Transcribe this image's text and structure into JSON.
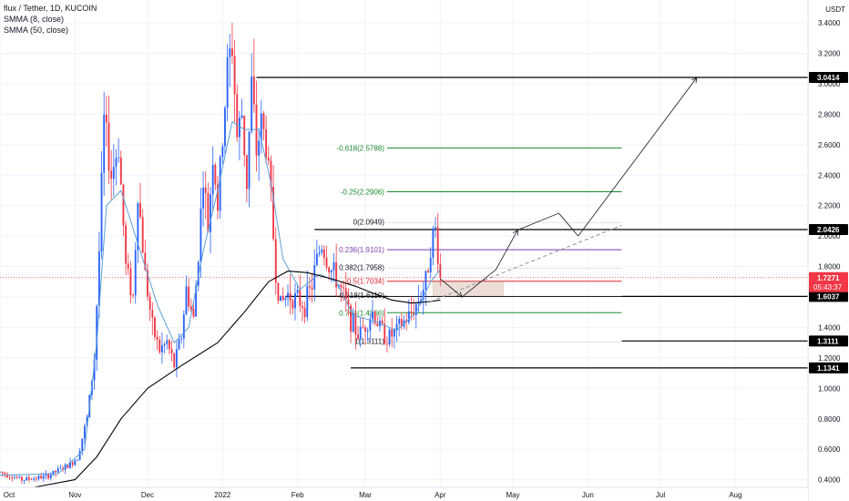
{
  "legend": {
    "symbol_line": "flux / Tether, 1D, KUCOIN",
    "ma1": "SMMA (8, close)",
    "ma2": "SMMA (50, close)"
  },
  "colors": {
    "up": "#2962ff",
    "down": "#f23645",
    "ma_fast": "#5a9fd6",
    "ma_slow": "#000000",
    "fib_green": "#1b8a2e",
    "fib_purple": "#7b3fb0",
    "fib_red": "#d9262c",
    "current_price": "#f23645"
  },
  "chart_data": {
    "type": "candlestick",
    "title": "flux / Tether, 1D, KUCOIN",
    "yaxis": {
      "unit": "USDT",
      "ylim": [
        0.35,
        3.55
      ],
      "ticks": [
        3.4,
        3.2,
        3.0,
        2.8,
        2.6,
        2.4,
        2.2,
        2.0,
        1.8,
        1.6,
        1.4,
        1.2,
        1.0,
        0.8,
        0.6,
        0.4
      ],
      "tick_labels": [
        "3.4000",
        "3.2000",
        "3.0000",
        "2.8000",
        "2.6000",
        "2.4000",
        "2.2000",
        "2.0000",
        "1.8000",
        "1.6000",
        "1.4000",
        "1.2000",
        "1.0000",
        "0.8000",
        "0.6000",
        "0.4000"
      ]
    },
    "xaxis": {
      "start": "2021-10-01",
      "end": "2022-08-31",
      "labels": [
        {
          "date": "2021-10-01",
          "label": "Oct"
        },
        {
          "date": "2021-11-01",
          "label": "Nov"
        },
        {
          "date": "2021-12-01",
          "label": "Dec"
        },
        {
          "date": "2022-01-01",
          "label": "2022"
        },
        {
          "date": "2022-02-01",
          "label": "Feb"
        },
        {
          "date": "2022-03-01",
          "label": "Mar"
        },
        {
          "date": "2022-04-01",
          "label": "Apr"
        },
        {
          "date": "2022-05-01",
          "label": "May"
        },
        {
          "date": "2022-06-01",
          "label": "Jun"
        },
        {
          "date": "2022-07-01",
          "label": "Jul"
        },
        {
          "date": "2022-08-01",
          "label": "Aug"
        }
      ]
    },
    "price_path": [
      [
        "2021-10-01",
        0.45
      ],
      [
        "2021-10-10",
        0.4
      ],
      [
        "2021-10-20",
        0.42
      ],
      [
        "2021-10-30",
        0.5
      ],
      [
        "2021-11-02",
        0.55
      ],
      [
        "2021-11-06",
        0.8
      ],
      [
        "2021-11-09",
        1.2
      ],
      [
        "2021-11-11",
        1.9
      ],
      [
        "2021-11-13",
        2.75
      ],
      [
        "2021-11-16",
        2.4
      ],
      [
        "2021-11-19",
        2.6
      ],
      [
        "2021-11-22",
        1.8
      ],
      [
        "2021-11-25",
        1.6
      ],
      [
        "2021-11-27",
        2.3
      ],
      [
        "2021-11-30",
        1.75
      ],
      [
        "2021-12-03",
        1.4
      ],
      [
        "2021-12-06",
        1.25
      ],
      [
        "2021-12-09",
        1.3
      ],
      [
        "2021-12-12",
        1.15
      ],
      [
        "2021-12-15",
        1.35
      ],
      [
        "2021-12-17",
        1.65
      ],
      [
        "2021-12-20",
        1.45
      ],
      [
        "2021-12-22",
        1.9
      ],
      [
        "2021-12-24",
        2.4
      ],
      [
        "2021-12-26",
        2.05
      ],
      [
        "2021-12-28",
        2.55
      ],
      [
        "2021-12-30",
        2.2
      ],
      [
        "2022-01-01",
        2.65
      ],
      [
        "2022-01-03",
        3.1
      ],
      [
        "2022-01-05",
        3.25
      ],
      [
        "2022-01-07",
        2.65
      ],
      [
        "2022-01-09",
        2.8
      ],
      [
        "2022-01-11",
        2.35
      ],
      [
        "2022-01-13",
        3.0
      ],
      [
        "2022-01-15",
        2.55
      ],
      [
        "2022-01-17",
        2.75
      ],
      [
        "2022-01-19",
        2.6
      ],
      [
        "2022-01-21",
        2.25
      ],
      [
        "2022-01-23",
        1.75
      ],
      [
        "2022-01-25",
        1.55
      ],
      [
        "2022-01-28",
        1.62
      ],
      [
        "2022-02-01",
        1.58
      ],
      [
        "2022-02-04",
        1.55
      ],
      [
        "2022-02-07",
        1.68
      ],
      [
        "2022-02-09",
        1.85
      ],
      [
        "2022-02-11",
        1.95
      ],
      [
        "2022-02-14",
        1.8
      ],
      [
        "2022-02-17",
        1.72
      ],
      [
        "2022-02-20",
        1.6
      ],
      [
        "2022-02-23",
        1.45
      ],
      [
        "2022-02-26",
        1.35
      ],
      [
        "2022-03-01",
        1.42
      ],
      [
        "2022-03-04",
        1.5
      ],
      [
        "2022-03-07",
        1.4
      ],
      [
        "2022-03-10",
        1.33
      ],
      [
        "2022-03-13",
        1.36
      ],
      [
        "2022-03-16",
        1.42
      ],
      [
        "2022-03-19",
        1.47
      ],
      [
        "2022-03-22",
        1.55
      ],
      [
        "2022-03-24",
        1.62
      ],
      [
        "2022-03-26",
        1.7
      ],
      [
        "2022-03-28",
        1.95
      ],
      [
        "2022-03-30",
        2.04
      ],
      [
        "2022-04-01",
        1.72
      ]
    ],
    "candle_seed": 7,
    "current_price": {
      "value": 1.7271,
      "label": "1.7271",
      "countdown": "05:43:37"
    },
    "smma_fast": [
      [
        "2021-10-01",
        0.43
      ],
      [
        "2021-10-25",
        0.44
      ],
      [
        "2021-11-05",
        0.6
      ],
      [
        "2021-11-10",
        1.3
      ],
      [
        "2021-11-14",
        2.2
      ],
      [
        "2021-11-20",
        2.3
      ],
      [
        "2021-11-27",
        1.95
      ],
      [
        "2021-12-05",
        1.55
      ],
      [
        "2021-12-12",
        1.3
      ],
      [
        "2021-12-18",
        1.4
      ],
      [
        "2021-12-24",
        1.9
      ],
      [
        "2021-12-30",
        2.3
      ],
      [
        "2022-01-05",
        2.75
      ],
      [
        "2022-01-10",
        2.7
      ],
      [
        "2022-01-16",
        2.7
      ],
      [
        "2022-01-21",
        2.35
      ],
      [
        "2022-01-26",
        1.85
      ],
      [
        "2022-02-02",
        1.65
      ],
      [
        "2022-02-10",
        1.75
      ],
      [
        "2022-02-17",
        1.7
      ],
      [
        "2022-02-24",
        1.48
      ],
      [
        "2022-03-05",
        1.44
      ],
      [
        "2022-03-14",
        1.38
      ],
      [
        "2022-03-22",
        1.5
      ],
      [
        "2022-03-28",
        1.7
      ],
      [
        "2022-04-01",
        1.78
      ]
    ],
    "smma_slow": [
      [
        "2021-10-01",
        0.33
      ],
      [
        "2021-10-15",
        0.35
      ],
      [
        "2021-11-01",
        0.4
      ],
      [
        "2021-11-10",
        0.55
      ],
      [
        "2021-11-20",
        0.8
      ],
      [
        "2021-12-01",
        1.0
      ],
      [
        "2021-12-15",
        1.15
      ],
      [
        "2021-12-30",
        1.3
      ],
      [
        "2022-01-10",
        1.5
      ],
      [
        "2022-01-20",
        1.7
      ],
      [
        "2022-01-28",
        1.77
      ],
      [
        "2022-02-05",
        1.76
      ],
      [
        "2022-02-15",
        1.72
      ],
      [
        "2022-02-25",
        1.67
      ],
      [
        "2022-03-05",
        1.62
      ],
      [
        "2022-03-12",
        1.58
      ],
      [
        "2022-03-20",
        1.56
      ],
      [
        "2022-03-28",
        1.57
      ],
      [
        "2022-04-01",
        1.58
      ]
    ],
    "fib_levels": [
      {
        "label": "-0.618(2.5788)",
        "value": 2.5788,
        "color": "#1b8a2e"
      },
      {
        "label": "-0.25(2.2906)",
        "value": 2.2906,
        "color": "#1b8a2e"
      },
      {
        "label": "0(2.0949)",
        "value": 2.0949,
        "color": "#ffffff"
      },
      {
        "label": "0.236(1.9101)",
        "value": 1.9101,
        "color": "#7b3fb0"
      },
      {
        "label": "0.382(1.7958)",
        "value": 1.7958,
        "color": "#ffffff"
      },
      {
        "label": "0.5(1.7034)",
        "value": 1.7034,
        "color": "#d9262c"
      },
      {
        "label": "0.618(1.6110)",
        "value": 1.611,
        "color": "#ffffff"
      },
      {
        "label": "0.764(1.4966)",
        "value": 1.4966,
        "color": "#1b8a2e"
      },
      {
        "label": "1(1.3111)",
        "value": 1.3111,
        "color": "#ffffff"
      }
    ],
    "fib_range": [
      "2022-03-10",
      "2022-06-15"
    ],
    "horizontal_levels": [
      {
        "value": 3.0414,
        "label": "3.0414",
        "start": "2022-01-15"
      },
      {
        "value": 2.0426,
        "label": "2.0426",
        "start": "2022-02-08"
      },
      {
        "value": 1.6037,
        "label": "1.6037",
        "start": "2022-01-27"
      },
      {
        "value": 1.3111,
        "label": "1.3111",
        "start": "2022-03-10"
      },
      {
        "value": 1.1341,
        "label": "1.1341",
        "start": "2022-02-23"
      }
    ],
    "trendline_dashed": [
      [
        "2022-03-28",
        1.57
      ],
      [
        "2022-06-15",
        2.07
      ]
    ],
    "projection_path": [
      [
        "2022-04-01",
        1.72
      ],
      [
        "2022-04-10",
        1.6
      ],
      [
        "2022-04-24",
        1.78
      ],
      [
        "2022-05-03",
        2.04
      ],
      [
        "2022-05-20",
        2.15
      ],
      [
        "2022-05-28",
        2.0
      ],
      [
        "2022-07-16",
        3.04
      ]
    ],
    "projection_box": {
      "from": "2022-03-29",
      "to": "2022-04-27",
      "top": 1.7,
      "bottom": 1.61
    }
  }
}
